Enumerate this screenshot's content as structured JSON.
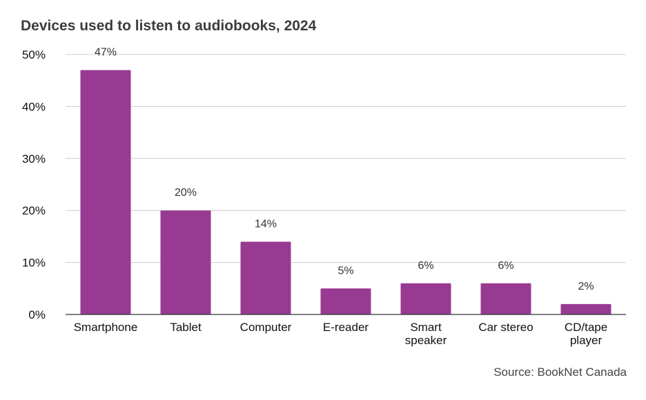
{
  "chart_data": {
    "type": "bar",
    "title": "Devices used to listen to audiobooks, 2024",
    "categories": [
      "Smartphone",
      "Tablet",
      "Computer",
      "E-reader",
      "Smart speaker",
      "Car stereo",
      "CD/tape player"
    ],
    "category_lines": [
      [
        "Smartphone"
      ],
      [
        "Tablet"
      ],
      [
        "Computer"
      ],
      [
        "E-reader"
      ],
      [
        "Smart",
        "speaker"
      ],
      [
        "Car stereo"
      ],
      [
        "CD/tape",
        "player"
      ]
    ],
    "values": [
      47,
      20,
      14,
      5,
      6,
      6,
      2
    ],
    "value_labels": [
      "47%",
      "20%",
      "14%",
      "5%",
      "6%",
      "6%",
      "2%"
    ],
    "ylim": [
      0,
      50
    ],
    "yticks": [
      0,
      10,
      20,
      30,
      40,
      50
    ],
    "ytick_labels": [
      "0%",
      "10%",
      "20%",
      "30%",
      "40%",
      "50%"
    ],
    "xlabel": "",
    "ylabel": "",
    "grid": true,
    "bar_color": "#993a92",
    "grid_color": "#cccccc",
    "axis_color": "#333333",
    "source": "Source: BookNet Canada"
  }
}
